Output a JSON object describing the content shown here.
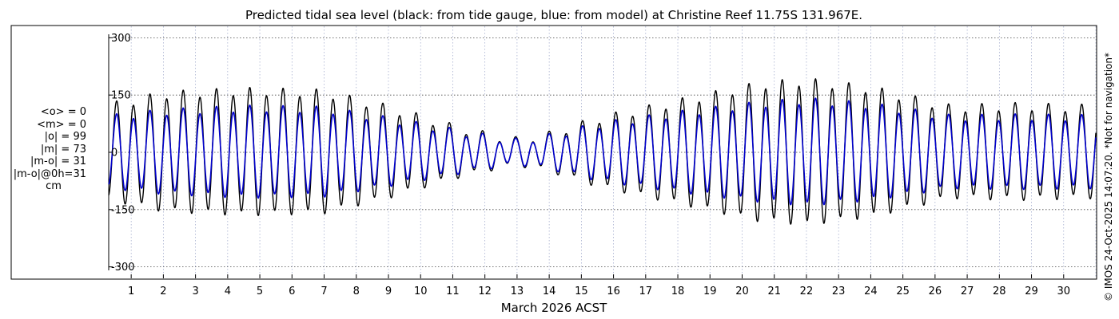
{
  "chart_data": {
    "type": "line",
    "title": "Predicted tidal sea level (black: from tide gauge, blue: from model) at Christine Reef 11.75S 131.967E.",
    "xlabel": "March 2026 ACST",
    "ylabel": "",
    "x_ticks": [
      "1",
      "2",
      "3",
      "4",
      "5",
      "6",
      "7",
      "8",
      "9",
      "10",
      "11",
      "12",
      "13",
      "14",
      "15",
      "16",
      "17",
      "18",
      "19",
      "20",
      "21",
      "22",
      "23",
      "24",
      "25",
      "26",
      "27",
      "28",
      "29",
      "30"
    ],
    "y_ticks": [
      300,
      150,
      0,
      -150,
      -300
    ],
    "ylim": [
      -330,
      330
    ],
    "xlim_days": [
      0.3,
      31.0
    ],
    "grid": true,
    "units": "cm",
    "stats": [
      "<o> = 0",
      "<m> = 0",
      "|o| = 99",
      "|m| = 73",
      "|m-o| = 31",
      "|m-o|@0h=31",
      "cm"
    ],
    "series": [
      {
        "name": "tide gauge",
        "color": "#000000",
        "semidiurnal_amplitude_cm": [
          [
            0.3,
            120
          ],
          [
            2.0,
            150
          ],
          [
            4.5,
            160
          ],
          [
            7.0,
            155
          ],
          [
            9.0,
            115
          ],
          [
            11.0,
            65
          ],
          [
            12.0,
            45
          ],
          [
            13.0,
            30
          ],
          [
            14.0,
            45
          ],
          [
            15.5,
            85
          ],
          [
            18.0,
            130
          ],
          [
            20.5,
            175
          ],
          [
            22.0,
            185
          ],
          [
            24.0,
            165
          ],
          [
            26.5,
            115
          ],
          [
            28.5,
            120
          ],
          [
            31.0,
            115
          ]
        ],
        "diurnal_amplitude_cm": 12
      },
      {
        "name": "model",
        "color": "#0000cc",
        "semidiurnal_amplitude_cm": [
          [
            0.3,
            90
          ],
          [
            2.0,
            105
          ],
          [
            4.5,
            115
          ],
          [
            7.0,
            112
          ],
          [
            9.0,
            85
          ],
          [
            11.0,
            55
          ],
          [
            12.0,
            40
          ],
          [
            13.0,
            28
          ],
          [
            14.0,
            40
          ],
          [
            15.5,
            70
          ],
          [
            18.0,
            100
          ],
          [
            20.5,
            125
          ],
          [
            22.0,
            135
          ],
          [
            24.0,
            122
          ],
          [
            26.5,
            90
          ],
          [
            28.5,
            92
          ],
          [
            31.0,
            90
          ]
        ],
        "diurnal_amplitude_cm": 10
      }
    ]
  },
  "footer": {
    "copyright": "© IMOS 24-Oct-2025 14:07:20. *Not for navigation*"
  }
}
